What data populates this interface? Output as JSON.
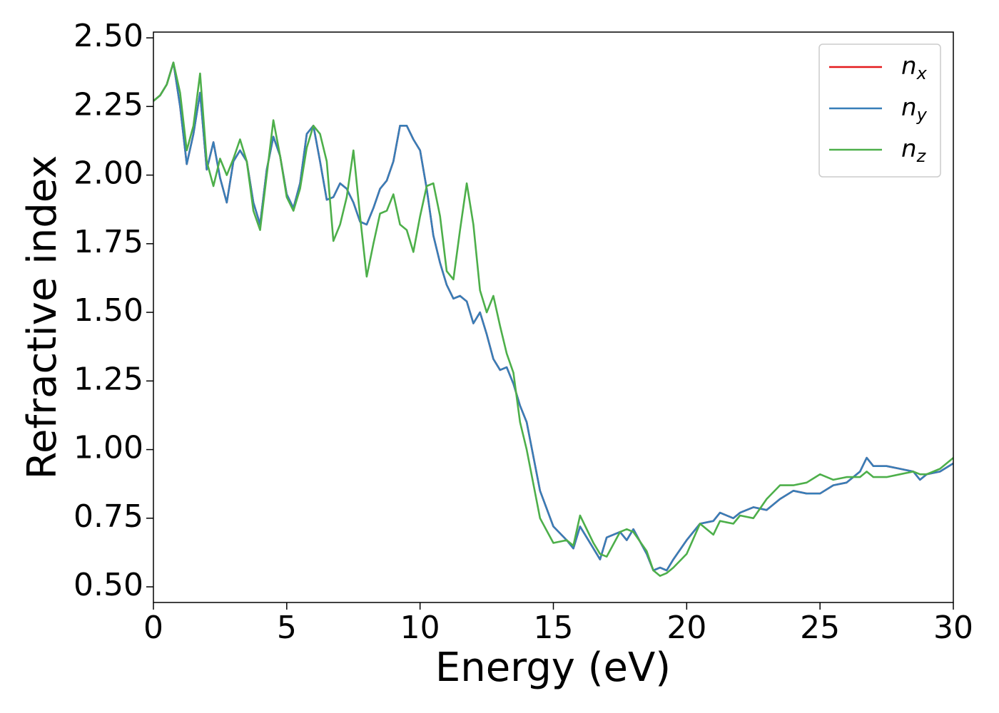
{
  "chart_data": {
    "type": "line",
    "xlabel": "Energy (eV)",
    "ylabel": "Refractive index",
    "xlim": [
      0,
      30
    ],
    "ylim": [
      0.443,
      2.521
    ],
    "xticks": [
      0,
      5,
      10,
      15,
      20,
      25,
      30
    ],
    "yticks": [
      {
        "value": 0.5,
        "label": "0.50"
      },
      {
        "value": 0.75,
        "label": "0.75"
      },
      {
        "value": 1.0,
        "label": "1.00"
      },
      {
        "value": 1.25,
        "label": "1.25"
      },
      {
        "value": 1.5,
        "label": "1.50"
      },
      {
        "value": 1.75,
        "label": "1.75"
      },
      {
        "value": 2.0,
        "label": "2.00"
      },
      {
        "value": 2.25,
        "label": "2.25"
      },
      {
        "value": 2.5,
        "label": "2.50"
      }
    ],
    "legend": "upper right",
    "x": [
      0,
      0.25,
      0.5,
      0.75,
      1,
      1.25,
      1.5,
      1.75,
      2,
      2.25,
      2.5,
      2.75,
      3,
      3.25,
      3.5,
      3.75,
      4,
      4.25,
      4.5,
      4.75,
      5,
      5.25,
      5.5,
      5.75,
      6,
      6.25,
      6.5,
      6.75,
      7,
      7.25,
      7.5,
      7.75,
      8,
      8.25,
      8.5,
      8.75,
      9,
      9.25,
      9.5,
      9.75,
      10,
      10.25,
      10.5,
      10.75,
      11,
      11.25,
      11.5,
      11.75,
      12,
      12.25,
      12.5,
      12.75,
      13,
      13.25,
      13.5,
      13.75,
      14,
      14.5,
      15,
      15.5,
      15.75,
      16,
      16.5,
      16.75,
      17,
      17.5,
      17.75,
      18,
      18.5,
      18.75,
      19,
      19.25,
      19.5,
      20,
      20.5,
      21,
      21.25,
      21.75,
      22,
      22.5,
      23,
      23.5,
      24,
      24.5,
      25,
      25.5,
      26,
      26.5,
      26.75,
      27,
      27.5,
      28,
      28.5,
      28.75,
      29,
      29.5,
      30
    ],
    "series": [
      {
        "name": "n_x",
        "color": "#e41a1c",
        "values": [
          2.27,
          2.29,
          2.33,
          2.41,
          2.25,
          2.04,
          2.15,
          2.3,
          2.02,
          2.12,
          1.99,
          1.9,
          2.05,
          2.09,
          2.05,
          1.9,
          1.82,
          2.02,
          2.14,
          2.07,
          1.93,
          1.88,
          1.97,
          2.15,
          2.18,
          2.05,
          1.91,
          1.92,
          1.97,
          1.95,
          1.9,
          1.83,
          1.82,
          1.88,
          1.95,
          1.98,
          2.05,
          2.18,
          2.18,
          2.13,
          2.09,
          1.95,
          1.78,
          1.68,
          1.6,
          1.55,
          1.56,
          1.54,
          1.46,
          1.5,
          1.42,
          1.33,
          1.29,
          1.3,
          1.24,
          1.16,
          1.1,
          0.85,
          0.72,
          0.67,
          0.64,
          0.72,
          0.64,
          0.6,
          0.68,
          0.7,
          0.67,
          0.71,
          0.62,
          0.56,
          0.57,
          0.56,
          0.6,
          0.67,
          0.73,
          0.74,
          0.77,
          0.75,
          0.77,
          0.79,
          0.78,
          0.82,
          0.85,
          0.84,
          0.84,
          0.87,
          0.88,
          0.92,
          0.97,
          0.94,
          0.94,
          0.93,
          0.92,
          0.89,
          0.91,
          0.92,
          0.95
        ]
      },
      {
        "name": "n_y",
        "color": "#377eb8",
        "values": [
          2.27,
          2.29,
          2.33,
          2.41,
          2.25,
          2.04,
          2.15,
          2.3,
          2.02,
          2.12,
          1.99,
          1.9,
          2.05,
          2.09,
          2.05,
          1.9,
          1.82,
          2.02,
          2.14,
          2.07,
          1.93,
          1.88,
          1.97,
          2.15,
          2.18,
          2.05,
          1.91,
          1.92,
          1.97,
          1.95,
          1.9,
          1.83,
          1.82,
          1.88,
          1.95,
          1.98,
          2.05,
          2.18,
          2.18,
          2.13,
          2.09,
          1.95,
          1.78,
          1.68,
          1.6,
          1.55,
          1.56,
          1.54,
          1.46,
          1.5,
          1.42,
          1.33,
          1.29,
          1.3,
          1.24,
          1.16,
          1.1,
          0.85,
          0.72,
          0.67,
          0.64,
          0.72,
          0.64,
          0.6,
          0.68,
          0.7,
          0.67,
          0.71,
          0.62,
          0.56,
          0.57,
          0.56,
          0.6,
          0.67,
          0.73,
          0.74,
          0.77,
          0.75,
          0.77,
          0.79,
          0.78,
          0.82,
          0.85,
          0.84,
          0.84,
          0.87,
          0.88,
          0.92,
          0.97,
          0.94,
          0.94,
          0.93,
          0.92,
          0.89,
          0.91,
          0.92,
          0.95
        ]
      },
      {
        "name": "n_z",
        "color": "#4daf4a",
        "values": [
          2.27,
          2.29,
          2.33,
          2.41,
          2.3,
          2.09,
          2.18,
          2.37,
          2.05,
          1.96,
          2.06,
          2.0,
          2.06,
          2.13,
          2.05,
          1.87,
          1.8,
          2.0,
          2.2,
          2.07,
          1.92,
          1.87,
          1.95,
          2.1,
          2.18,
          2.15,
          2.05,
          1.76,
          1.82,
          1.92,
          2.09,
          1.85,
          1.63,
          1.75,
          1.86,
          1.87,
          1.93,
          1.82,
          1.8,
          1.72,
          1.85,
          1.96,
          1.97,
          1.85,
          1.65,
          1.62,
          1.8,
          1.97,
          1.82,
          1.58,
          1.5,
          1.56,
          1.45,
          1.35,
          1.28,
          1.1,
          1.0,
          0.75,
          0.66,
          0.67,
          0.65,
          0.76,
          0.66,
          0.62,
          0.61,
          0.7,
          0.71,
          0.7,
          0.63,
          0.56,
          0.54,
          0.55,
          0.57,
          0.62,
          0.73,
          0.69,
          0.74,
          0.73,
          0.76,
          0.75,
          0.82,
          0.87,
          0.87,
          0.88,
          0.91,
          0.89,
          0.9,
          0.9,
          0.92,
          0.9,
          0.9,
          0.91,
          0.92,
          0.91,
          0.91,
          0.93,
          0.97
        ]
      }
    ]
  }
}
